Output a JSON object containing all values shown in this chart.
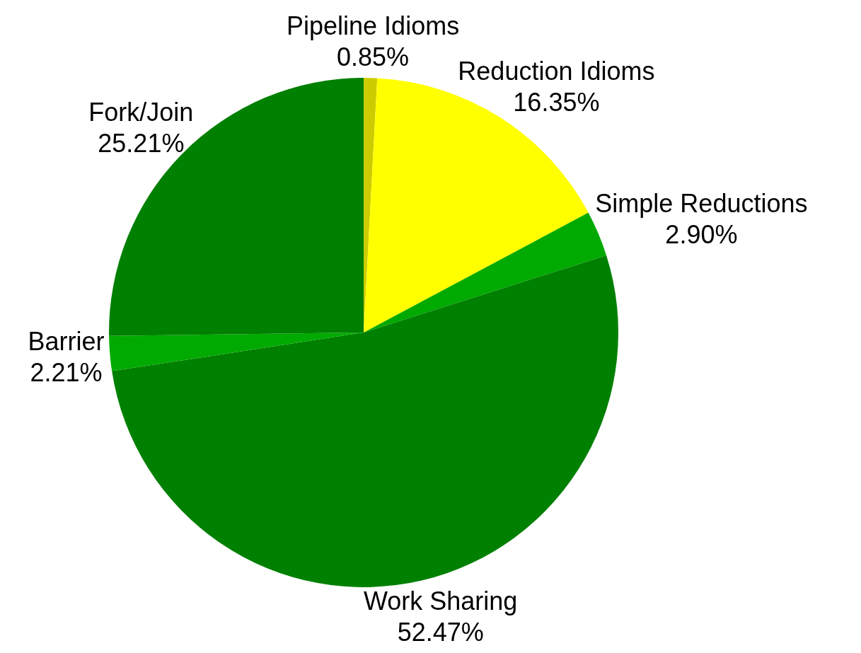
{
  "chart_data": {
    "type": "pie",
    "categories": [
      "Pipeline Idioms",
      "Reduction Idioms",
      "Simple Reductions",
      "Work Sharing",
      "Barrier",
      "Fork/Join"
    ],
    "values": [
      0.85,
      16.35,
      2.9,
      52.47,
      2.21,
      25.21
    ],
    "value_labels": [
      "0.85%",
      "16.35%",
      "2.90%",
      "52.47%",
      "2.21%",
      "25.21%"
    ],
    "colors": [
      "#cccc00",
      "#ffff00",
      "#00aa00",
      "#008000",
      "#00aa00",
      "#008000"
    ],
    "legend": false
  }
}
